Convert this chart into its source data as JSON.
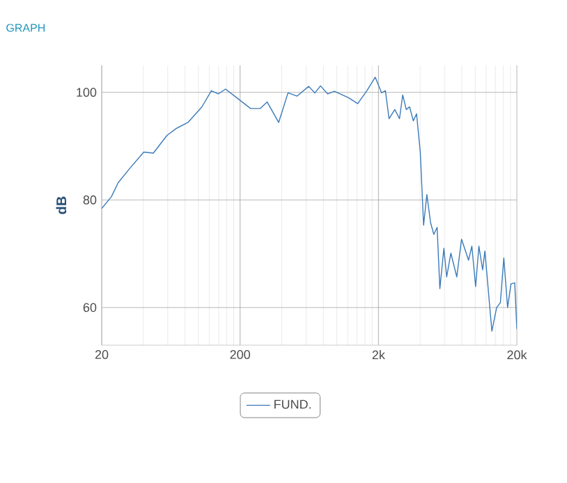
{
  "chart_data": {
    "type": "line",
    "title": "GRAPH",
    "ylabel": "dB",
    "log": "x",
    "grid": true,
    "legend": "bottom",
    "marker": "none",
    "line_style": "solid",
    "xlim": [
      20,
      20000
    ],
    "ylim": [
      53,
      105
    ],
    "xticks": [
      20,
      200,
      {
        "value": 2000,
        "label": "2k"
      },
      {
        "value": 20000,
        "label": "20k"
      }
    ],
    "yticks": [
      60,
      80,
      100
    ],
    "series": [
      {
        "name": "FUND.",
        "color": "#3a7ab8",
        "x": [
          20,
          23.5,
          26.3,
          32,
          40.3,
          47.2,
          59.3,
          69.4,
          84,
          106,
          124,
          139,
          157,
          189,
          238,
          280,
          314,
          380,
          444,
          516,
          626,
          695,
          762,
          860,
          960,
          1214,
          1416,
          1649,
          1895,
          2108,
          2245,
          2385,
          2623,
          2838,
          2993,
          3177,
          3356,
          3571,
          3770,
          4010,
          4237,
          4474,
          4756,
          5024,
          5305,
          5555,
          5940,
          6220,
          6669,
          7360,
          7970,
          8950,
          9460,
          10070,
          10630,
          11320,
          11750,
          13200,
          14290,
          15200,
          16100,
          17140,
          18140,
          19300,
          20000
        ],
        "values": [
          78.4,
          80.6,
          83.2,
          85.9,
          88.9,
          88.7,
          92.0,
          93.3,
          94.4,
          97.3,
          100.3,
          99.7,
          100.6,
          99.0,
          97.0,
          97.0,
          98.2,
          94.4,
          99.9,
          99.3,
          101.1,
          99.9,
          101.2,
          99.7,
          100.2,
          99.0,
          97.9,
          100.3,
          102.8,
          99.9,
          100.3,
          95.1,
          96.8,
          95.1,
          99.5,
          96.8,
          97.3,
          94.7,
          96.0,
          88.9,
          75.3,
          81.0,
          75.8,
          73.6,
          74.9,
          63.5,
          71.0,
          65.7,
          70.1,
          65.7,
          72.7,
          68.8,
          71.4,
          63.9,
          71.4,
          67.0,
          70.5,
          55.6,
          60.0,
          60.9,
          69.2,
          60.0,
          64.4,
          64.6,
          56.0
        ]
      }
    ]
  }
}
